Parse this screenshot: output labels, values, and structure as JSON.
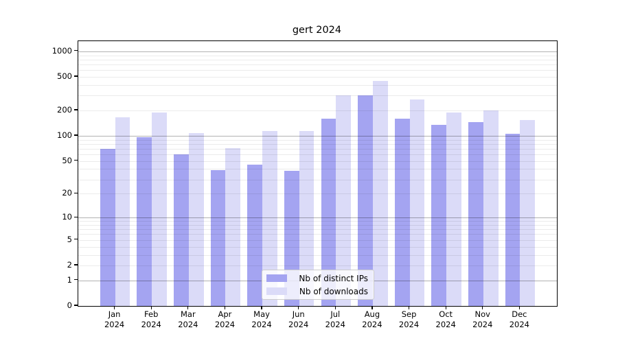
{
  "figure": {
    "title": "gert 2024"
  },
  "chart_data": {
    "type": "bar",
    "title": "gert 2024",
    "categories": [
      "Jan",
      "Feb",
      "Mar",
      "Apr",
      "May",
      "Jun",
      "Jul",
      "Aug",
      "Sep",
      "Oct",
      "Nov",
      "Dec"
    ],
    "year_label": "2024",
    "series": [
      {
        "name": "Nb of distinct IPs",
        "color": "#a4a4f1",
        "values": [
          70,
          97,
          60,
          39,
          45,
          38,
          160,
          305,
          160,
          135,
          145,
          105
        ]
      },
      {
        "name": "Nb of downloads",
        "color": "#dbdbf8",
        "values": [
          165,
          190,
          108,
          71,
          115,
          115,
          305,
          450,
          270,
          190,
          200,
          155
        ]
      }
    ],
    "y_axis": {
      "scale": "log1p",
      "tick_values": [
        0,
        1,
        2,
        5,
        10,
        20,
        50,
        100,
        200,
        500,
        1000
      ],
      "major_gridline_values": [
        1,
        10,
        100,
        1000
      ],
      "ylim": [
        0,
        1318
      ]
    },
    "legend": {
      "position": "bottom-center",
      "entries": [
        "Nb of distinct IPs",
        "Nb of downloads"
      ]
    },
    "grid": true
  }
}
